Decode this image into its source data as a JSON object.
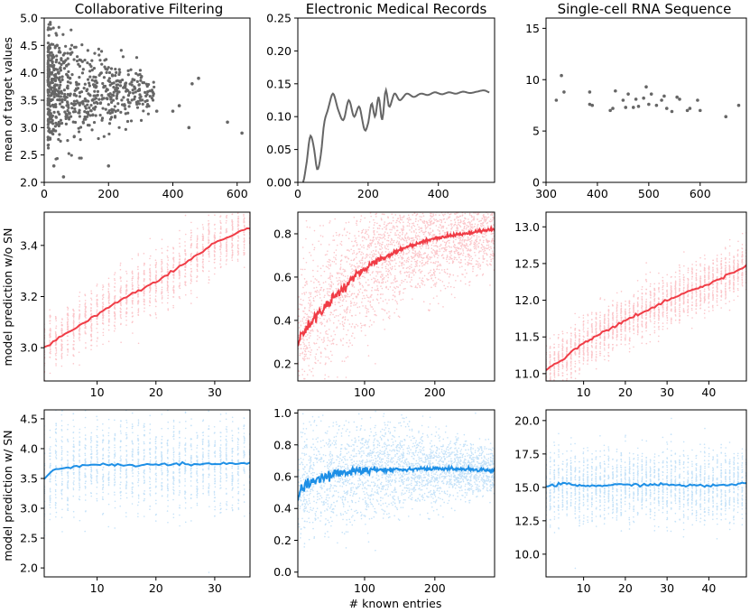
{
  "colors": {
    "gray": "#666666",
    "red": "#f03c46",
    "red_scatter": "#f88f96",
    "blue": "#1d8fe6",
    "blue_scatter": "#8cc6f3"
  },
  "columns": [
    "Collaborative Filtering",
    "Electronic Medical Records",
    "Single-cell RNA Sequence"
  ],
  "row_labels": [
    "mean of target values",
    "model prediction w/o SN",
    "model prediction w/ SN"
  ],
  "xlabel": "# known entries",
  "chart_data": [
    {
      "type": "scatter",
      "panel": "r0c0",
      "title": "Collaborative Filtering",
      "ylabel": "mean of target values",
      "xlim": [
        0,
        640
      ],
      "ylim": [
        2.0,
        5.0
      ],
      "xticks": [
        0,
        200,
        400,
        600
      ],
      "yticks": [
        2.0,
        2.5,
        3.0,
        3.5,
        4.0,
        4.5,
        5.0
      ],
      "ytick_labels": [
        "2.0",
        "2.5",
        "3.0",
        "3.5",
        "4.0",
        "4.5",
        "5.0"
      ],
      "points": [
        [
          20,
          4.8
        ],
        [
          40,
          4.5
        ],
        [
          60,
          4.2
        ],
        [
          80,
          3.9
        ],
        [
          100,
          3.7
        ],
        [
          150,
          3.5
        ],
        [
          200,
          3.6
        ],
        [
          250,
          3.4
        ],
        [
          300,
          3.5
        ],
        [
          350,
          3.3
        ],
        [
          400,
          3.3
        ],
        [
          420,
          3.4
        ],
        [
          450,
          3.0
        ],
        [
          460,
          3.8
        ],
        [
          480,
          3.9
        ],
        [
          570,
          3.1
        ],
        [
          615,
          2.9
        ],
        [
          30,
          2.3
        ],
        [
          60,
          2.1
        ],
        [
          200,
          2.3
        ]
      ],
      "note": "dense cloud of ~1000 points concentrated at x < 150"
    },
    {
      "type": "line",
      "panel": "r0c1",
      "title": "Electronic Medical Records",
      "xlim": [
        0,
        560
      ],
      "ylim": [
        0,
        0.25
      ],
      "xticks": [
        0,
        200,
        400
      ],
      "yticks": [
        0,
        0.05,
        0.1,
        0.15,
        0.2,
        0.25
      ],
      "ytick_labels": [
        "0.00",
        "0.05",
        "0.10",
        "0.15",
        "0.20",
        "0.25"
      ],
      "x": [
        15,
        25,
        35,
        45,
        55,
        65,
        75,
        85,
        100,
        115,
        130,
        145,
        160,
        175,
        190,
        200,
        210,
        220,
        230,
        240,
        250,
        260,
        275,
        290,
        310,
        330,
        350,
        370,
        390,
        410,
        430,
        450,
        470,
        490,
        510,
        530,
        545
      ],
      "y": [
        0.0,
        0.03,
        0.07,
        0.055,
        0.02,
        0.04,
        0.09,
        0.11,
        0.135,
        0.11,
        0.095,
        0.125,
        0.1,
        0.115,
        0.08,
        0.09,
        0.12,
        0.1,
        0.13,
        0.095,
        0.14,
        0.115,
        0.135,
        0.125,
        0.135,
        0.13,
        0.135,
        0.133,
        0.137,
        0.134,
        0.137,
        0.135,
        0.138,
        0.136,
        0.138,
        0.14,
        0.137
      ]
    },
    {
      "type": "scatter",
      "panel": "r0c2",
      "title": "Single-cell RNA Sequence",
      "xlim": [
        300,
        690
      ],
      "ylim": [
        0,
        16
      ],
      "xticks": [
        300,
        400,
        500,
        600
      ],
      "yticks": [
        0,
        5,
        10,
        15
      ],
      "ytick_labels": [
        "0",
        "5",
        "10",
        "15"
      ],
      "points": [
        [
          320,
          8.0
        ],
        [
          330,
          10.4
        ],
        [
          335,
          8.8
        ],
        [
          385,
          8.8
        ],
        [
          385,
          7.6
        ],
        [
          390,
          7.5
        ],
        [
          425,
          7.0
        ],
        [
          430,
          7.2
        ],
        [
          435,
          8.9
        ],
        [
          450,
          8.0
        ],
        [
          455,
          7.3
        ],
        [
          460,
          8.6
        ],
        [
          470,
          7.3
        ],
        [
          475,
          8.1
        ],
        [
          480,
          7.4
        ],
        [
          490,
          8.2
        ],
        [
          495,
          9.3
        ],
        [
          500,
          7.6
        ],
        [
          505,
          8.6
        ],
        [
          515,
          7.5
        ],
        [
          525,
          8.0
        ],
        [
          530,
          8.4
        ],
        [
          535,
          7.2
        ],
        [
          545,
          6.9
        ],
        [
          555,
          8.3
        ],
        [
          560,
          8.1
        ],
        [
          575,
          7.0
        ],
        [
          580,
          7.2
        ],
        [
          595,
          8.0
        ],
        [
          600,
          7.0
        ],
        [
          650,
          6.4
        ],
        [
          675,
          7.5
        ]
      ]
    },
    {
      "type": "line",
      "panel": "r1c0",
      "ylabel": "model prediction w/o SN",
      "xlim": [
        1,
        36
      ],
      "ylim": [
        2.87,
        3.53
      ],
      "xticks": [
        10,
        20,
        30
      ],
      "yticks": [
        3.0,
        3.2,
        3.4
      ],
      "ytick_labels": [
        "3.0",
        "3.2",
        "3.4"
      ],
      "x": [
        1,
        5,
        10,
        15,
        20,
        25,
        30,
        35,
        36
      ],
      "y": [
        3.0,
        3.06,
        3.13,
        3.2,
        3.26,
        3.33,
        3.41,
        3.46,
        3.47
      ],
      "scatter_note": "per-x vertical spread of about ±0.12 around the line"
    },
    {
      "type": "line",
      "panel": "r1c1",
      "xlim": [
        5,
        285
      ],
      "ylim": [
        0.12,
        0.9
      ],
      "xticks": [
        100,
        200
      ],
      "yticks": [
        0.2,
        0.4,
        0.6,
        0.8
      ],
      "ytick_labels": [
        "0.2",
        "0.4",
        "0.6",
        "0.8"
      ],
      "x": [
        5,
        20,
        40,
        60,
        80,
        100,
        120,
        140,
        160,
        180,
        200,
        220,
        240,
        260,
        280
      ],
      "y": [
        0.3,
        0.38,
        0.45,
        0.52,
        0.58,
        0.64,
        0.68,
        0.71,
        0.74,
        0.76,
        0.78,
        0.79,
        0.8,
        0.81,
        0.82
      ],
      "scatter_note": "dense cloud from 0.1 to 0.9"
    },
    {
      "type": "line",
      "panel": "r1c2",
      "xlim": [
        1,
        49
      ],
      "ylim": [
        10.9,
        13.2
      ],
      "xticks": [
        10,
        20,
        30,
        40
      ],
      "yticks": [
        11.0,
        11.5,
        12.0,
        12.5,
        13.0
      ],
      "ytick_labels": [
        "11.0",
        "11.5",
        "12.0",
        "12.5",
        "13.0"
      ],
      "x": [
        1,
        5,
        10,
        15,
        20,
        25,
        30,
        35,
        40,
        45,
        49
      ],
      "y": [
        11.05,
        11.2,
        11.42,
        11.58,
        11.72,
        11.86,
        12.0,
        12.12,
        12.22,
        12.35,
        12.48
      ],
      "scatter_note": "per-x vertical spread of about ±0.3"
    },
    {
      "type": "line",
      "panel": "r2c0",
      "ylabel": "model prediction w/ SN",
      "xlim": [
        1,
        36
      ],
      "ylim": [
        1.85,
        4.65
      ],
      "xticks": [
        10,
        20,
        30
      ],
      "yticks": [
        2.0,
        2.5,
        3.0,
        3.5,
        4.0,
        4.5
      ],
      "ytick_labels": [
        "2.0",
        "2.5",
        "3.0",
        "3.5",
        "4.0",
        "4.5"
      ],
      "x": [
        1,
        2,
        3,
        5,
        8,
        12,
        15,
        20,
        25,
        30,
        36
      ],
      "y": [
        3.5,
        3.6,
        3.66,
        3.68,
        3.72,
        3.74,
        3.72,
        3.73,
        3.74,
        3.75,
        3.76
      ],
      "scatter_note": "spread from 2.0 to 4.5"
    },
    {
      "type": "line",
      "panel": "r2c1",
      "xlabel": "# known entries",
      "xlim": [
        5,
        285
      ],
      "ylim": [
        -0.03,
        1.02
      ],
      "xticks": [
        100,
        200
      ],
      "yticks": [
        0.0,
        0.2,
        0.4,
        0.6,
        0.8,
        1.0
      ],
      "ytick_labels": [
        "0.0",
        "0.2",
        "0.4",
        "0.6",
        "0.8",
        "1.0"
      ],
      "x": [
        5,
        10,
        20,
        40,
        60,
        80,
        100,
        140,
        180,
        220,
        260,
        285
      ],
      "y": [
        0.45,
        0.52,
        0.56,
        0.6,
        0.62,
        0.63,
        0.64,
        0.645,
        0.65,
        0.65,
        0.645,
        0.64
      ],
      "scatter_note": "dense cloud from 0.0 to 1.0, narrowing with x"
    },
    {
      "type": "line",
      "panel": "r2c2",
      "xlim": [
        1,
        49
      ],
      "ylim": [
        8.3,
        20.8
      ],
      "xticks": [
        10,
        20,
        30,
        40
      ],
      "yticks": [
        10.0,
        12.5,
        15.0,
        17.5,
        20.0
      ],
      "ytick_labels": [
        "10.0",
        "12.5",
        "15.0",
        "17.5",
        "20.0"
      ],
      "x": [
        1,
        5,
        10,
        20,
        30,
        40,
        49
      ],
      "y": [
        15.0,
        15.3,
        15.1,
        15.2,
        15.2,
        15.1,
        15.3
      ],
      "scatter_note": "per-x spread from about 12 to 18.5"
    }
  ]
}
